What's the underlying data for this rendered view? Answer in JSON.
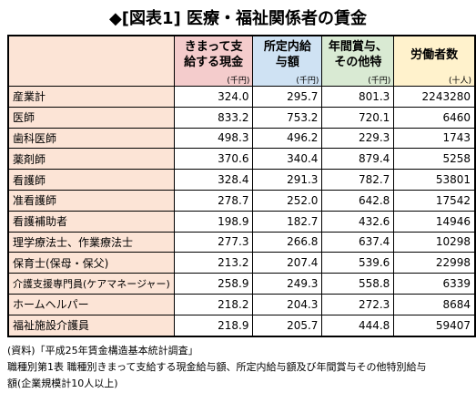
{
  "title": "◆[図表1] 医療・福祉関係者の賃金",
  "table": {
    "headers": [
      {
        "lines": [
          "きまって支",
          "給する現金"
        ],
        "unit": "(千円)"
      },
      {
        "lines": [
          "所定内給",
          "与額"
        ],
        "unit": "(千円)"
      },
      {
        "lines": [
          "年間賞与、",
          "その他特"
        ],
        "unit": "(千円)"
      },
      {
        "lines": [
          "労働者数"
        ],
        "unit": "(十人)"
      }
    ],
    "rows": [
      [
        "産業計",
        "324.0",
        "295.7",
        "801.3",
        "2243280"
      ],
      [
        "医師",
        "833.2",
        "753.2",
        "720.1",
        "6460"
      ],
      [
        "歯科医師",
        "498.3",
        "496.2",
        "229.3",
        "1743"
      ],
      [
        "薬剤師",
        "370.6",
        "340.4",
        "879.4",
        "5258"
      ],
      [
        "看護師",
        "328.4",
        "291.3",
        "782.7",
        "53801"
      ],
      [
        "准看護師",
        "278.7",
        "252.0",
        "642.8",
        "17542"
      ],
      [
        "看護補助者",
        "198.9",
        "182.7",
        "432.6",
        "14946"
      ],
      [
        "理学療法士、作業療法士",
        "277.3",
        "266.8",
        "637.4",
        "10298"
      ],
      [
        "保育士(保母・保父)",
        "213.2",
        "207.4",
        "539.6",
        "22998"
      ],
      [
        "介護支援専門員(ケアマネージャー)",
        "258.9",
        "249.3",
        "558.8",
        "6339"
      ],
      [
        "ホームヘルパー",
        "218.2",
        "204.3",
        "272.3",
        "8684"
      ],
      [
        "福祉施設介護員",
        "218.9",
        "205.7",
        "444.8",
        "59407"
      ]
    ]
  },
  "notes": [
    "(資料)「平成25年賃金構造基本統計調査」",
    "職種別第1表 職種別きまって支給する現金給与額、所定内給与額及び年間賞与その他特別給与",
    "額(企業規模計10人以上)"
  ]
}
